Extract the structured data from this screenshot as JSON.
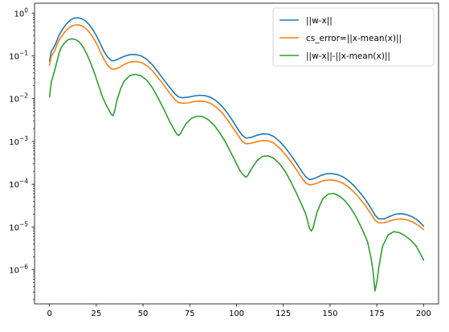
{
  "chart_data": {
    "type": "line",
    "title": "",
    "xlabel": "",
    "ylabel": "",
    "xlim": [
      -8,
      208
    ],
    "ylim": [
      1.6e-07,
      1.7
    ],
    "yscale": "log",
    "xticks": [
      0,
      25,
      50,
      75,
      100,
      125,
      150,
      175,
      200
    ],
    "xtick_labels": [
      "0",
      "25",
      "50",
      "75",
      "100",
      "125",
      "150",
      "175",
      "200"
    ],
    "yticks": [
      1e-06,
      1e-05,
      0.0001,
      0.001,
      0.01,
      0.1,
      1
    ],
    "ytick_labels": [
      {
        "base": "10",
        "exp": "−6"
      },
      {
        "base": "10",
        "exp": "−5"
      },
      {
        "base": "10",
        "exp": "−4"
      },
      {
        "base": "10",
        "exp": "−3"
      },
      {
        "base": "10",
        "exp": "−2"
      },
      {
        "base": "10",
        "exp": "−1"
      },
      {
        "base": "10",
        "exp": "0"
      }
    ],
    "grid": false,
    "legend_position": "top-right",
    "series": [
      {
        "name": "||w-x||",
        "color": "#1f77b4",
        "x": [
          0,
          1,
          2,
          3,
          4,
          5,
          7,
          9,
          11,
          13,
          15,
          17,
          19,
          21,
          23,
          25,
          27,
          29,
          31,
          33,
          34,
          35,
          37,
          40,
          43,
          46,
          49,
          52,
          55,
          58,
          61,
          64,
          67,
          69,
          71,
          74,
          77,
          80,
          83,
          86,
          89,
          92,
          95,
          98,
          101,
          103,
          105,
          108,
          111,
          114,
          117,
          120,
          123,
          126,
          129,
          132,
          135,
          137,
          139,
          142,
          145,
          148,
          151,
          154,
          157,
          160,
          163,
          166,
          169,
          172,
          174,
          176,
          179,
          182,
          185,
          188,
          191,
          194,
          197,
          200
        ],
        "y": [
          0.075,
          0.13,
          0.15,
          0.18,
          0.23,
          0.3,
          0.42,
          0.56,
          0.68,
          0.76,
          0.78,
          0.75,
          0.67,
          0.55,
          0.42,
          0.3,
          0.2,
          0.13,
          0.095,
          0.078,
          0.077,
          0.078,
          0.085,
          0.098,
          0.107,
          0.108,
          0.1,
          0.083,
          0.062,
          0.042,
          0.028,
          0.019,
          0.013,
          0.011,
          0.0105,
          0.0108,
          0.0115,
          0.012,
          0.0118,
          0.0108,
          0.009,
          0.0068,
          0.0047,
          0.003,
          0.00185,
          0.0014,
          0.0012,
          0.00125,
          0.0014,
          0.0015,
          0.00148,
          0.0013,
          0.001,
          0.00072,
          0.00048,
          0.00031,
          0.000195,
          0.00015,
          0.000128,
          0.000138,
          0.00016,
          0.000175,
          0.000178,
          0.000168,
          0.000148,
          0.00012,
          9e-05,
          6.4e-05,
          4.3e-05,
          2.7e-05,
          1.9e-05,
          1.55e-05,
          1.55e-05,
          1.78e-05,
          2e-05,
          2.05e-05,
          1.95e-05,
          1.73e-05,
          1.43e-05,
          1.05e-05
        ]
      },
      {
        "name": "cs_error=||x-mean(x)||",
        "color": "#ff7f0e",
        "x": [
          0,
          1,
          2,
          3,
          4,
          5,
          7,
          9,
          11,
          13,
          15,
          17,
          19,
          21,
          23,
          25,
          27,
          29,
          31,
          33,
          35,
          37,
          40,
          43,
          46,
          49,
          52,
          55,
          58,
          61,
          64,
          67,
          69,
          71,
          74,
          77,
          80,
          83,
          86,
          89,
          92,
          95,
          98,
          101,
          103,
          105,
          108,
          111,
          114,
          117,
          120,
          123,
          126,
          129,
          132,
          135,
          137,
          139,
          142,
          145,
          148,
          151,
          154,
          157,
          160,
          163,
          166,
          169,
          172,
          174,
          176,
          179,
          182,
          185,
          188,
          191,
          194,
          197,
          200
        ],
        "y": [
          0.06,
          0.1,
          0.115,
          0.14,
          0.18,
          0.23,
          0.31,
          0.4,
          0.47,
          0.52,
          0.53,
          0.51,
          0.45,
          0.37,
          0.28,
          0.2,
          0.13,
          0.085,
          0.06,
          0.05,
          0.049,
          0.053,
          0.063,
          0.072,
          0.074,
          0.07,
          0.059,
          0.045,
          0.031,
          0.021,
          0.014,
          0.0095,
          0.0081,
          0.0078,
          0.008,
          0.0085,
          0.0088,
          0.0086,
          0.0078,
          0.0064,
          0.0048,
          0.0033,
          0.0021,
          0.00135,
          0.001,
          0.00088,
          0.00091,
          0.00099,
          0.00105,
          0.00103,
          0.00091,
          0.0007,
          0.0005,
          0.00034,
          0.00022,
          0.000138,
          0.000107,
          9.6e-05,
          0.000102,
          0.000115,
          0.000125,
          0.000126,
          0.000119,
          0.000105,
          8.5e-05,
          6.4e-05,
          4.6e-05,
          3.1e-05,
          2e-05,
          1.45e-05,
          1.25e-05,
          1.26e-05,
          1.39e-05,
          1.51e-05,
          1.54e-05,
          1.48e-05,
          1.32e-05,
          1.11e-05,
          8.8e-06
        ]
      },
      {
        "name": "||w-x||-||x-mean(x)||",
        "color": "#2ca02c",
        "x": [
          0,
          1,
          2,
          3,
          4,
          5,
          6,
          8,
          10,
          12,
          14,
          16,
          18,
          20,
          22,
          24,
          26,
          28,
          30,
          32,
          33,
          34,
          35,
          36,
          38,
          40,
          43,
          46,
          49,
          52,
          55,
          58,
          61,
          64,
          66,
          68,
          69,
          70,
          71,
          73,
          76,
          79,
          82,
          85,
          88,
          91,
          94,
          97,
          100,
          102,
          104,
          105,
          106,
          108,
          111,
          114,
          117,
          120,
          123,
          126,
          129,
          132,
          135,
          137,
          138,
          139,
          140,
          141,
          143,
          146,
          149,
          152,
          155,
          158,
          161,
          164,
          167,
          170,
          172,
          173,
          174,
          175,
          176,
          178,
          181,
          184,
          187,
          190,
          193,
          196,
          200
        ],
        "y": [
          0.011,
          0.025,
          0.035,
          0.05,
          0.075,
          0.11,
          0.15,
          0.2,
          0.24,
          0.25,
          0.24,
          0.21,
          0.16,
          0.11,
          0.068,
          0.04,
          0.022,
          0.012,
          0.0075,
          0.0052,
          0.0043,
          0.004,
          0.0055,
          0.009,
          0.017,
          0.026,
          0.035,
          0.037,
          0.034,
          0.027,
          0.018,
          0.0105,
          0.0058,
          0.0031,
          0.0021,
          0.0015,
          0.00138,
          0.0015,
          0.00185,
          0.0026,
          0.0035,
          0.0039,
          0.0038,
          0.0032,
          0.0024,
          0.0016,
          0.00098,
          0.00055,
          0.0003,
          0.0002,
          0.00016,
          0.000145,
          0.00016,
          0.00023,
          0.00036,
          0.00045,
          0.00046,
          0.0004,
          0.0003,
          0.0002,
          0.000115,
          6.2e-05,
          3.2e-05,
          2e-05,
          1.4e-05,
          9.2e-06,
          8e-06,
          9.8e-06,
          2.2e-05,
          4.5e-05,
          5.9e-05,
          6.1e-05,
          5.3e-05,
          4.1e-05,
          2.8e-05,
          1.7e-05,
          9.2e-06,
          4.6e-06,
          1.8e-06,
          9e-07,
          3.2e-07,
          5e-07,
          1.1e-06,
          3.5e-06,
          6.5e-06,
          7.8e-06,
          7.4e-06,
          6.3e-06,
          5e-06,
          3.6e-06,
          1.7e-06
        ]
      }
    ]
  }
}
